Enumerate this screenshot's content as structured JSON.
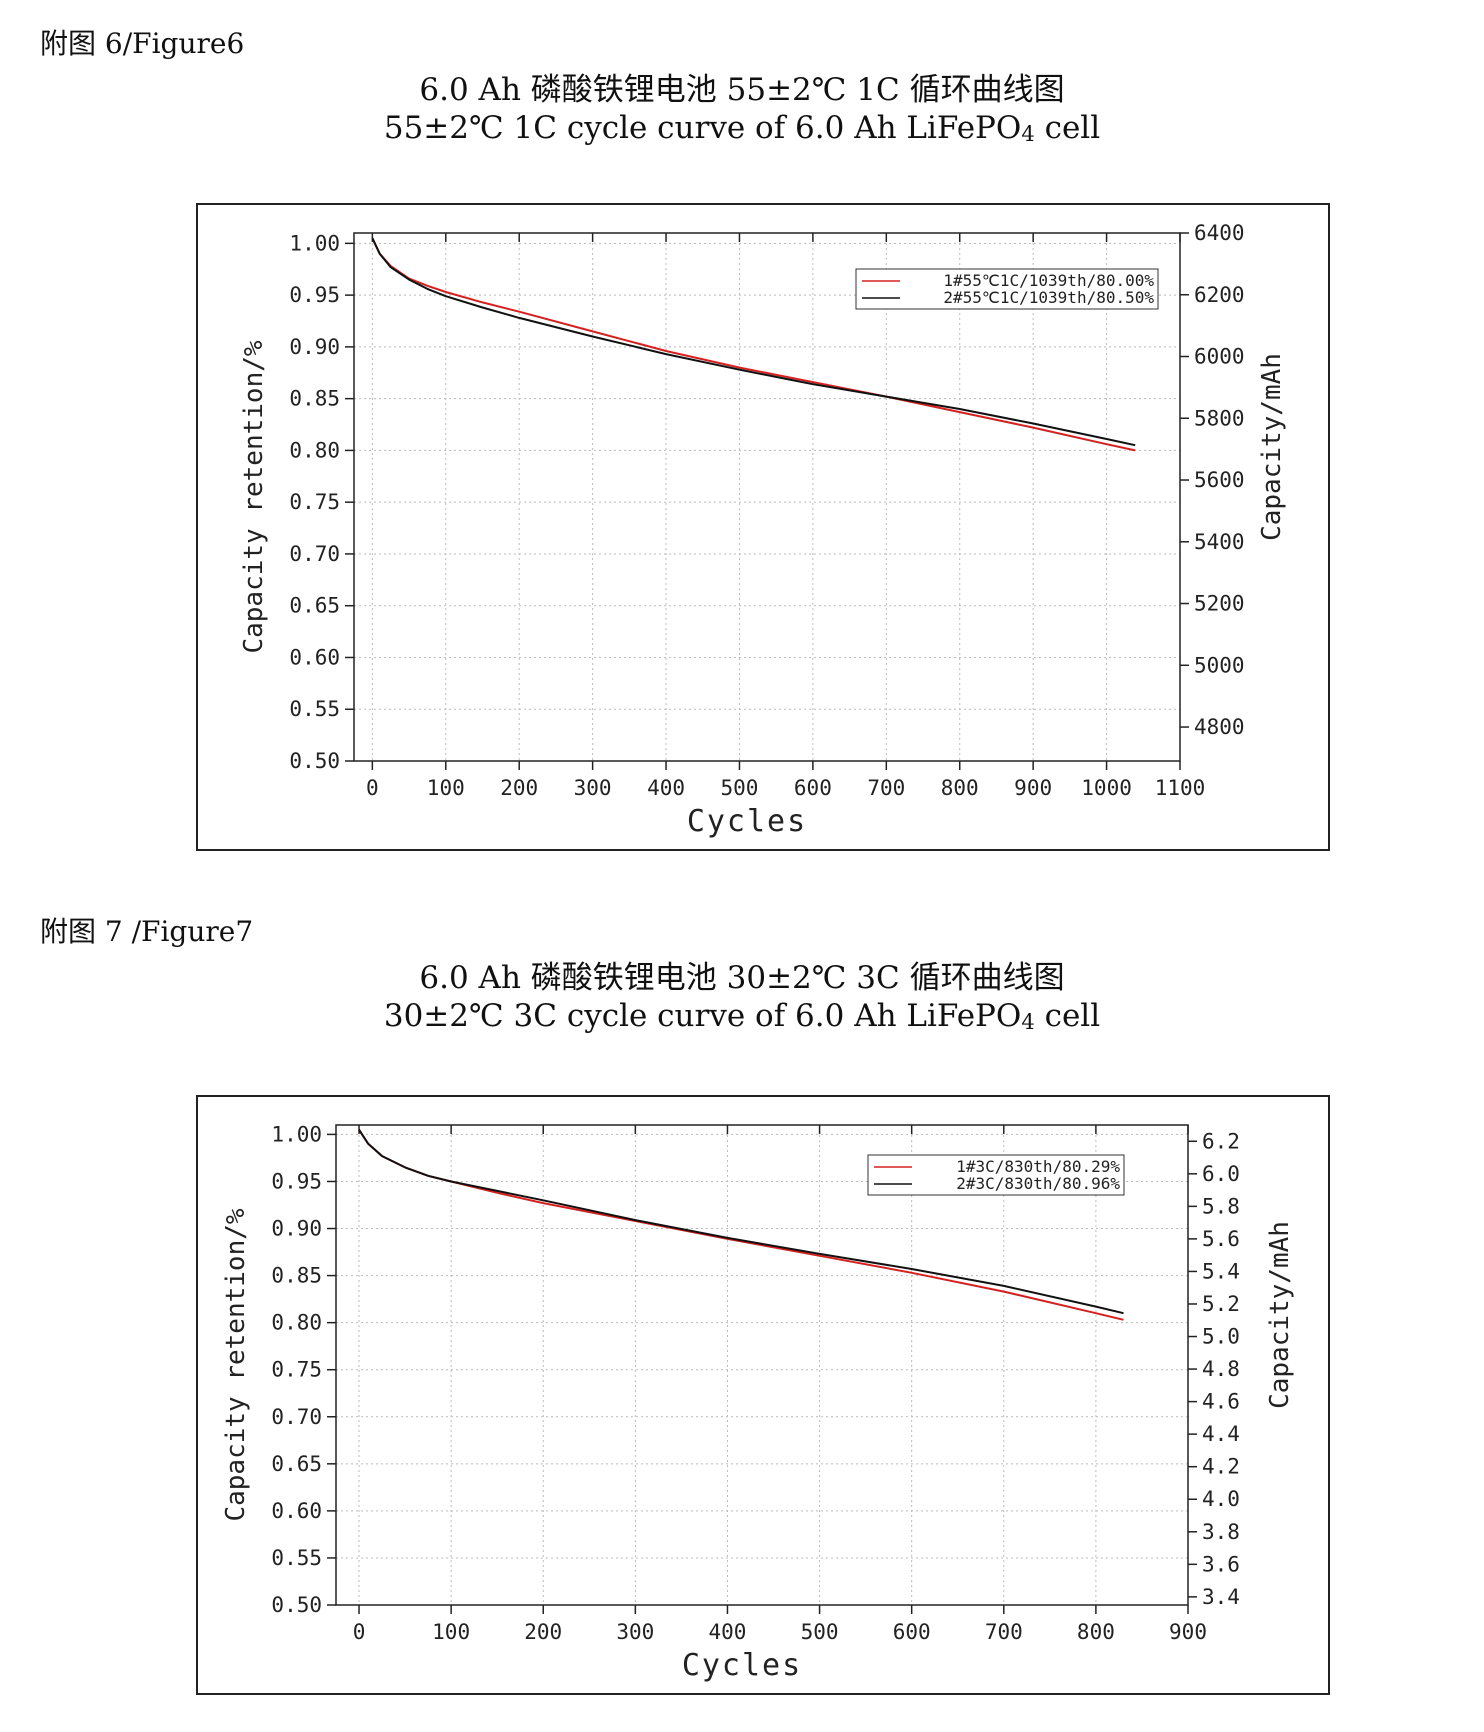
{
  "figures": [
    {
      "label": "附图 6/Figure6",
      "caption_cn": "6.0 Ah 磷酸铁锂电池 55±2℃  1C 循环曲线图",
      "caption_en_pre": "55±2℃  1C cycle curve of 6.0 Ah LiFePO",
      "caption_en_sub": "4",
      "caption_en_post": " cell"
    },
    {
      "label": "附图 7 /Figure7",
      "caption_cn": "6.0 Ah 磷酸铁锂电池 30±2℃  3C 循环曲线图",
      "caption_en_pre": "30±2℃  3C cycle curve of 6.0 Ah LiFePO",
      "caption_en_sub": "4",
      "caption_en_post": " cell"
    }
  ],
  "chart_data": [
    {
      "type": "line",
      "xlabel": "Cycles",
      "ylabel": "Capacity retention/%",
      "y2label": "Capacity/mAh",
      "xlim": [
        -25,
        1100
      ],
      "ylim": [
        0.5,
        1.01
      ],
      "y2lim": [
        4690,
        6400
      ],
      "xticks": [
        0,
        100,
        200,
        300,
        400,
        500,
        600,
        700,
        800,
        900,
        1000,
        1100
      ],
      "xtick_labels": [
        "0",
        "100",
        "200",
        "300",
        "400",
        "500",
        "600",
        "700",
        "800",
        "900",
        "1000",
        "1100"
      ],
      "yticks": [
        0.5,
        0.55,
        0.6,
        0.65,
        0.7,
        0.75,
        0.8,
        0.85,
        0.9,
        0.95,
        1.0
      ],
      "ytick_labels": [
        "0.50",
        "0.55",
        "0.60",
        "0.65",
        "0.70",
        "0.75",
        "0.80",
        "0.85",
        "0.90",
        "0.95",
        "1.00"
      ],
      "y2ticks": [
        4800,
        5000,
        5200,
        5400,
        5600,
        5800,
        6000,
        6200,
        6400
      ],
      "y2tick_labels": [
        "4800",
        "5000",
        "5200",
        "5400",
        "5600",
        "5800",
        "6000",
        "6200",
        "6400"
      ],
      "grid": true,
      "legend": "top-right",
      "series": [
        {
          "name": "1#55℃1C/1039th/80.00%",
          "color": "#d62020",
          "x": [
            0,
            10,
            25,
            50,
            75,
            100,
            150,
            200,
            300,
            400,
            500,
            600,
            700,
            800,
            900,
            1000,
            1039
          ],
          "y": [
            1.005,
            0.99,
            0.978,
            0.966,
            0.959,
            0.953,
            0.943,
            0.934,
            0.915,
            0.896,
            0.88,
            0.866,
            0.852,
            0.837,
            0.822,
            0.806,
            0.8
          ]
        },
        {
          "name": "2#55℃1C/1039th/80.50%",
          "color": "#111111",
          "x": [
            0,
            10,
            25,
            50,
            75,
            100,
            150,
            200,
            300,
            400,
            500,
            600,
            700,
            800,
            900,
            1000,
            1039
          ],
          "y": [
            1.005,
            0.99,
            0.977,
            0.965,
            0.956,
            0.949,
            0.938,
            0.928,
            0.91,
            0.893,
            0.878,
            0.864,
            0.852,
            0.84,
            0.826,
            0.811,
            0.805
          ]
        }
      ]
    },
    {
      "type": "line",
      "xlabel": "Cycles",
      "ylabel": "Capacity retention/%",
      "y2label": "Capacity/mAh",
      "xlim": [
        -25,
        900
      ],
      "ylim": [
        0.5,
        1.01
      ],
      "y2lim": [
        3.35,
        6.3
      ],
      "xticks": [
        0,
        100,
        200,
        300,
        400,
        500,
        600,
        700,
        800,
        900
      ],
      "xtick_labels": [
        "0",
        "100",
        "200",
        "300",
        "400",
        "500",
        "600",
        "700",
        "800",
        "900"
      ],
      "yticks": [
        0.5,
        0.55,
        0.6,
        0.65,
        0.7,
        0.75,
        0.8,
        0.85,
        0.9,
        0.95,
        1.0
      ],
      "ytick_labels": [
        "0.50",
        "0.55",
        "0.60",
        "0.65",
        "0.70",
        "0.75",
        "0.80",
        "0.85",
        "0.90",
        "0.95",
        "1.00"
      ],
      "y2ticks": [
        3.4,
        3.6,
        3.8,
        4.0,
        4.2,
        4.4,
        4.6,
        4.8,
        5.0,
        5.2,
        5.4,
        5.6,
        5.8,
        6.0,
        6.2
      ],
      "y2tick_labels": [
        "3.4",
        "3.6",
        "3.8",
        "4.0",
        "4.2",
        "4.4",
        "4.6",
        "4.8",
        "5.0",
        "5.2",
        "5.4",
        "5.6",
        "5.8",
        "6.0",
        "6.2"
      ],
      "grid": true,
      "legend": "top-right",
      "series": [
        {
          "name": "1#3C/830th/80.29%",
          "color": "#d62020",
          "x": [
            0,
            10,
            25,
            50,
            75,
            100,
            150,
            200,
            300,
            400,
            500,
            600,
            700,
            800,
            830
          ],
          "y": [
            1.005,
            0.99,
            0.977,
            0.965,
            0.956,
            0.95,
            0.938,
            0.927,
            0.908,
            0.889,
            0.871,
            0.853,
            0.833,
            0.81,
            0.803
          ]
        },
        {
          "name": "2#3C/830th/80.96%",
          "color": "#111111",
          "x": [
            0,
            10,
            25,
            50,
            75,
            100,
            150,
            200,
            300,
            400,
            500,
            600,
            700,
            800,
            830
          ],
          "y": [
            1.005,
            0.99,
            0.977,
            0.965,
            0.956,
            0.95,
            0.94,
            0.93,
            0.909,
            0.89,
            0.873,
            0.857,
            0.839,
            0.817,
            0.81
          ]
        }
      ]
    }
  ]
}
